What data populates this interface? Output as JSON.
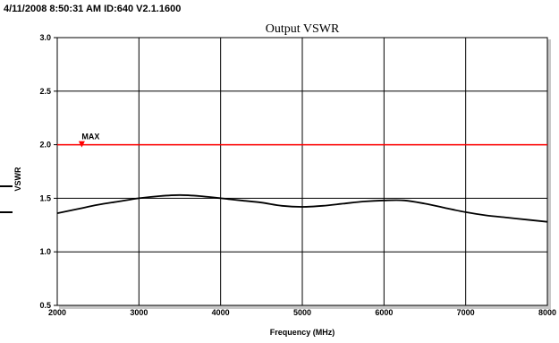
{
  "header": {
    "text": "4/11/2008 8:50:31 AM  ID:640 V2.1.1600"
  },
  "chart_data": {
    "type": "line",
    "title": "Output VSWR",
    "xlabel": "Frequency (MHz)",
    "ylabel": "VSWR",
    "xlim": [
      2000,
      8000
    ],
    "ylim": [
      0.5,
      3.0
    ],
    "x_ticks": [
      2000,
      3000,
      4000,
      5000,
      6000,
      7000,
      8000
    ],
    "x_tick_labels": [
      "2000",
      "3000",
      "4000",
      "5000",
      "6000",
      "7000",
      "8000"
    ],
    "y_ticks": [
      0.5,
      1.0,
      1.5,
      2.0,
      2.5,
      3.0
    ],
    "y_tick_labels": [
      "0.5",
      "1.0",
      "1.5",
      "2.0",
      "2.5",
      "3.0"
    ],
    "grid": true,
    "series": [
      {
        "color": "#000000",
        "x": [
          2000,
          2250,
          2500,
          2750,
          3000,
          3250,
          3500,
          3750,
          4000,
          4250,
          4500,
          4750,
          5000,
          5250,
          5500,
          5750,
          6000,
          6250,
          6500,
          6750,
          7000,
          7250,
          7500,
          7750,
          8000
        ],
        "y": [
          1.36,
          1.4,
          1.44,
          1.47,
          1.5,
          1.52,
          1.53,
          1.52,
          1.5,
          1.48,
          1.46,
          1.43,
          1.42,
          1.43,
          1.45,
          1.47,
          1.48,
          1.48,
          1.45,
          1.41,
          1.37,
          1.34,
          1.32,
          1.3,
          1.28
        ]
      },
      {
        "color": "#ff0000",
        "x": [
          2000,
          8000
        ],
        "y": [
          2.0,
          2.0
        ]
      }
    ],
    "annotations": [
      {
        "text": "MAX",
        "x": 2300,
        "y": 2.0,
        "marker_color": "#ff0000"
      }
    ]
  }
}
